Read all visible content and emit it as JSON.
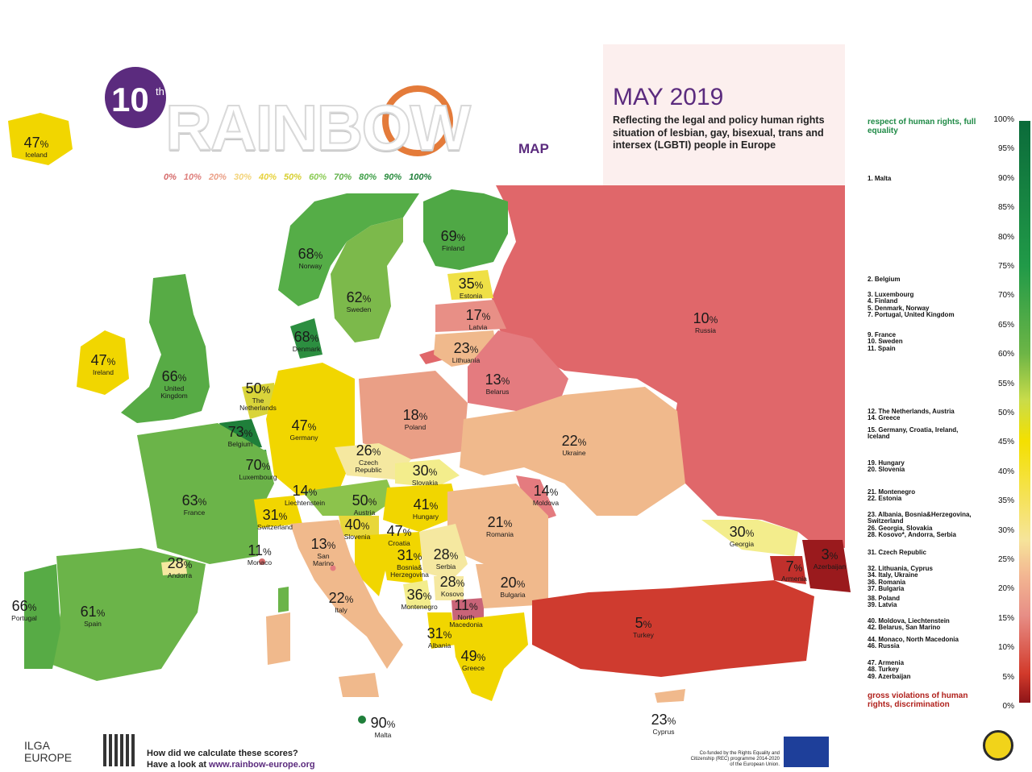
{
  "header": {
    "edition": "10",
    "edition_suffix": "th",
    "logo_word": "RAINBOW",
    "logo_map": "MAP",
    "date": "MAY 2019",
    "subtitle": "Reflecting the legal and policy human rights situation of lesbian, gay, bisexual, trans and intersex (LGBTI) people in Europe"
  },
  "scale_labels": [
    "0%",
    "10%",
    "20%",
    "30%",
    "40%",
    "50%",
    "60%",
    "70%",
    "80%",
    "90%",
    "100%"
  ],
  "scale_colors": [
    "#d56a6a",
    "#de7f7c",
    "#ea9f86",
    "#f3d47a",
    "#e7d23c",
    "#d7cf32",
    "#8ccc56",
    "#61b24b",
    "#3f9f48",
    "#2c8e40",
    "#1f7f3a"
  ],
  "countries": [
    {
      "name": "Iceland",
      "value": 47
    },
    {
      "name": "Norway",
      "value": 68
    },
    {
      "name": "Sweden",
      "value": 62
    },
    {
      "name": "Finland",
      "value": 69
    },
    {
      "name": "Estonia",
      "value": 35
    },
    {
      "name": "Latvia",
      "value": 17
    },
    {
      "name": "Lithuania",
      "value": 23
    },
    {
      "name": "Russia",
      "value": 10
    },
    {
      "name": "Denmark",
      "value": 68
    },
    {
      "name": "Ireland",
      "value": 47
    },
    {
      "name": "United\nKingdom",
      "value": 66
    },
    {
      "name": "The\nNetherlands",
      "value": 50
    },
    {
      "name": "Belgium",
      "value": 73
    },
    {
      "name": "Luxembourg",
      "value": 70
    },
    {
      "name": "Germany",
      "value": 47
    },
    {
      "name": "Poland",
      "value": 18
    },
    {
      "name": "Belarus",
      "value": 13
    },
    {
      "name": "Ukraine",
      "value": 22
    },
    {
      "name": "Czech\nRepublic",
      "value": 26
    },
    {
      "name": "Slovakia",
      "value": 30
    },
    {
      "name": "France",
      "value": 63
    },
    {
      "name": "Liechtenstein",
      "value": 14
    },
    {
      "name": "Austria",
      "value": 50
    },
    {
      "name": "Hungary",
      "value": 41
    },
    {
      "name": "Moldova",
      "value": 14
    },
    {
      "name": "Switzerland",
      "value": 31
    },
    {
      "name": "Slovenia",
      "value": 40
    },
    {
      "name": "Croatia",
      "value": 47
    },
    {
      "name": "Romania",
      "value": 21
    },
    {
      "name": "Monaco",
      "value": 11
    },
    {
      "name": "San\nMarino",
      "value": 13
    },
    {
      "name": "Bosnia&\nHerzegovina",
      "value": 31
    },
    {
      "name": "Serbia",
      "value": 28
    },
    {
      "name": "Georgia",
      "value": 30
    },
    {
      "name": "Azerbaijan",
      "value": 3
    },
    {
      "name": "Armenia",
      "value": 7
    },
    {
      "name": "Andorra",
      "value": 28
    },
    {
      "name": "Kosovo",
      "value": 28
    },
    {
      "name": "Montenegro",
      "value": 36
    },
    {
      "name": "Bulgaria",
      "value": 20
    },
    {
      "name": "Portugal",
      "value": 66
    },
    {
      "name": "Spain",
      "value": 61
    },
    {
      "name": "Italy",
      "value": 22
    },
    {
      "name": "North\nMacedonia",
      "value": 11
    },
    {
      "name": "Turkey",
      "value": 5
    },
    {
      "name": "Albania",
      "value": 31
    },
    {
      "name": "Greece",
      "value": 49
    },
    {
      "name": "Malta",
      "value": 90
    },
    {
      "name": "Cyprus",
      "value": 23
    }
  ],
  "legend": {
    "top_label": "respect of human rights, full equality",
    "bottom_label": "gross violations of human rights, discrimination",
    "ticks": [
      "100%",
      "95%",
      "90%",
      "85%",
      "80%",
      "75%",
      "70%",
      "65%",
      "60%",
      "55%",
      "50%",
      "45%",
      "40%",
      "35%",
      "30%",
      "25%",
      "20%",
      "15%",
      "10%",
      "5%",
      "0%"
    ],
    "rankings": [
      "1. Malta",
      "2. Belgium",
      "3. Luxembourg\n4. Finland\n5. Denmark, Norway\n7. Portugal, United Kingdom",
      "9. France\n10. Sweden\n11. Spain",
      "12. The Netherlands, Austria\n14. Greece",
      "15. Germany, Croatia, Ireland,\nIceland",
      "19. Hungary\n20. Slovenia",
      "21. Montenegro\n22. Estonia",
      "23. Albania, Bosnia&Herzegovina,\nSwitzerland\n26. Georgia, Slovakia\n28. Kosovo*, Andorra, Serbia",
      "31. Czech Republic",
      "32. Lithuania, Cyprus\n34. Italy, Ukraine\n36. Romania\n37. Bulgaria",
      "38. Poland\n39. Latvia",
      "40. Moldova, Liechtenstein\n42. Belarus, San Marino",
      "44. Monaco, North Macedonia\n46. Russia",
      "47. Armenia\n48. Turkey\n49. Azerbaijan"
    ]
  },
  "footer": {
    "org_line1": "ILGA",
    "org_line2": "EUROPE",
    "question": "How did we calculate these scores?",
    "link_prefix": "Have a look at ",
    "link_url": "www.rainbow-europe.org",
    "cofund": "Co-funded by the Rights Equality and Citizenship (REC) programme 2014-2020 of the European Union."
  },
  "colors": {
    "brand_purple": "#5b2b7e",
    "russia": "#e0676a",
    "turkey": "#cf3b2f",
    "green_dark": "#1f7f3a",
    "green": "#57ab45",
    "yellow": "#f1d600"
  }
}
